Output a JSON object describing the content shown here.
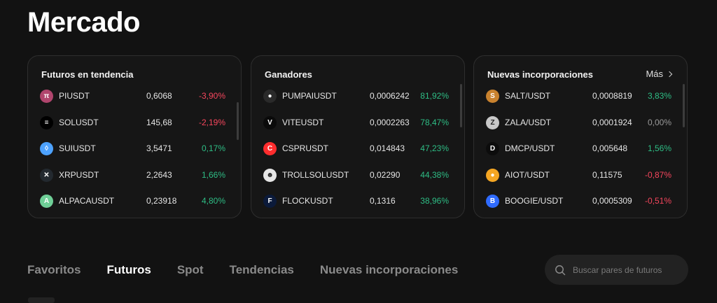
{
  "page": {
    "title": "Mercado"
  },
  "trending": {
    "title": "Futuros en tendencia",
    "rows": [
      {
        "symbol": "PIUSDT",
        "price": "0,6068",
        "change": "-3,90%",
        "icon": "pi-icon",
        "color": "#b0456d"
      },
      {
        "symbol": "SOLUSDT",
        "price": "145,68",
        "change": "-2,19%",
        "icon": "solana-icon",
        "color": "#000000"
      },
      {
        "symbol": "SUIUSDT",
        "price": "3,5471",
        "change": "0,17%",
        "icon": "sui-icon",
        "color": "#4da2ff"
      },
      {
        "symbol": "XRPUSDT",
        "price": "2,2643",
        "change": "1,66%",
        "icon": "xrp-icon",
        "color": "#23292f"
      },
      {
        "symbol": "ALPACAUSDT",
        "price": "0,23918",
        "change": "4,80%",
        "icon": "alpaca-icon",
        "color": "#6fcf97"
      }
    ]
  },
  "gainers": {
    "title": "Ganadores",
    "rows": [
      {
        "symbol": "PUMPAIUSDT",
        "price": "0,0006242",
        "change": "81,92%",
        "icon": "pumpai-icon",
        "color": "#2a2a2a"
      },
      {
        "symbol": "VITEUSDT",
        "price": "0,0002263",
        "change": "78,47%",
        "icon": "vite-icon",
        "color": "#0a0a0a"
      },
      {
        "symbol": "CSPRUSDT",
        "price": "0,014843",
        "change": "47,23%",
        "icon": "cspr-icon",
        "color": "#ff2d2e"
      },
      {
        "symbol": "TROLLSOLUSDT",
        "price": "0,02290",
        "change": "44,38%",
        "icon": "troll-icon",
        "color": "#e6e6e6"
      },
      {
        "symbol": "FLOCKUSDT",
        "price": "0,1316",
        "change": "38,96%",
        "icon": "flock-icon",
        "color": "#0b1a3a"
      }
    ]
  },
  "newListings": {
    "title": "Nuevas incorporaciones",
    "more": "Más",
    "rows": [
      {
        "symbol": "SALT/USDT",
        "price": "0,0008819",
        "change": "3,83%",
        "icon": "salt-icon",
        "color": "#c9822e"
      },
      {
        "symbol": "ZALA/USDT",
        "price": "0,0001924",
        "change": "0,00%",
        "icon": "zala-icon",
        "color": "#c8c8c8"
      },
      {
        "symbol": "DMCP/USDT",
        "price": "0,005648",
        "change": "1,56%",
        "icon": "dmcp-icon",
        "color": "#0c0c0c"
      },
      {
        "symbol": "AIOT/USDT",
        "price": "0,11575",
        "change": "-0,87%",
        "icon": "aiot-icon",
        "color": "#f5a623"
      },
      {
        "symbol": "BOOGIE/USDT",
        "price": "0,0005309",
        "change": "-0,51%",
        "icon": "boogie-icon",
        "color": "#2f6bff"
      }
    ]
  },
  "tabs": [
    {
      "label": "Favoritos",
      "active": false
    },
    {
      "label": "Futuros",
      "active": true
    },
    {
      "label": "Spot",
      "active": false
    },
    {
      "label": "Tendencias",
      "active": false
    },
    {
      "label": "Nuevas incorporaciones",
      "active": false
    }
  ],
  "search": {
    "placeholder": "Buscar pares de futuros",
    "icon": "search-icon"
  }
}
